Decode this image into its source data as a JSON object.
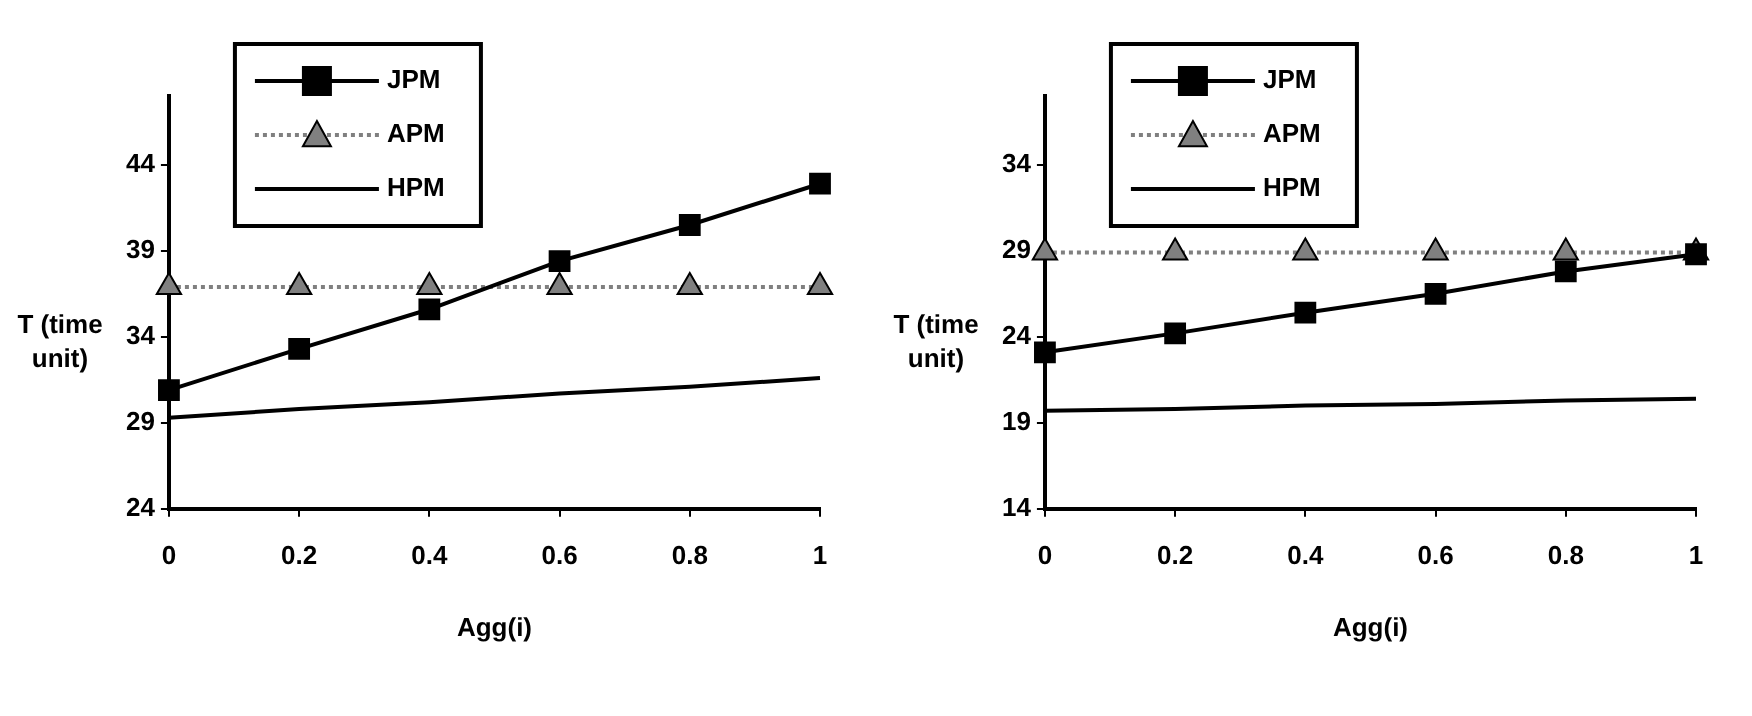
{
  "chart_data": [
    {
      "type": "line",
      "xlabel": "Agg(i)",
      "ylabel": "T (time unit)",
      "x": [
        0,
        0.2,
        0.4,
        0.6,
        0.8,
        1
      ],
      "xlim": [
        0,
        1
      ],
      "xticks": [
        0,
        0.2,
        0.4,
        0.6,
        0.8,
        1
      ],
      "ylim": [
        24,
        48
      ],
      "yticks": [
        24,
        29,
        34,
        39,
        44
      ],
      "grid": false,
      "legend": "top left",
      "series": [
        {
          "name": "JPM",
          "color": "#000000",
          "marker": "square",
          "line_style": "solid",
          "values": [
            30.9,
            33.3,
            35.6,
            38.4,
            40.5,
            42.9
          ]
        },
        {
          "name": "APM",
          "color": "#808080",
          "marker": "triangle",
          "line_style": "dotted",
          "values": [
            36.9,
            36.9,
            36.9,
            36.9,
            36.9,
            36.9
          ]
        },
        {
          "name": "HPM",
          "color": "#000000",
          "marker": "none",
          "line_style": "solid",
          "values": [
            29.3,
            29.8,
            30.2,
            30.7,
            31.1,
            31.6
          ]
        }
      ]
    },
    {
      "type": "line",
      "xlabel": "Agg(i)",
      "ylabel": "T (time unit)",
      "x": [
        0,
        0.2,
        0.4,
        0.6,
        0.8,
        1
      ],
      "xlim": [
        0,
        1
      ],
      "xticks": [
        0,
        0.2,
        0.4,
        0.6,
        0.8,
        1
      ],
      "ylim": [
        14,
        38
      ],
      "yticks": [
        14,
        19,
        24,
        29,
        34
      ],
      "grid": false,
      "legend": "top left",
      "series": [
        {
          "name": "JPM",
          "color": "#000000",
          "marker": "square",
          "line_style": "solid",
          "values": [
            23.1,
            24.2,
            25.4,
            26.5,
            27.8,
            28.8
          ]
        },
        {
          "name": "APM",
          "color": "#808080",
          "marker": "triangle",
          "line_style": "dotted",
          "values": [
            28.9,
            28.9,
            28.9,
            28.9,
            28.9,
            28.9
          ]
        },
        {
          "name": "HPM",
          "color": "#000000",
          "marker": "none",
          "line_style": "solid",
          "values": [
            19.7,
            19.8,
            20,
            20.1,
            20.3,
            20.4
          ]
        }
      ]
    }
  ]
}
